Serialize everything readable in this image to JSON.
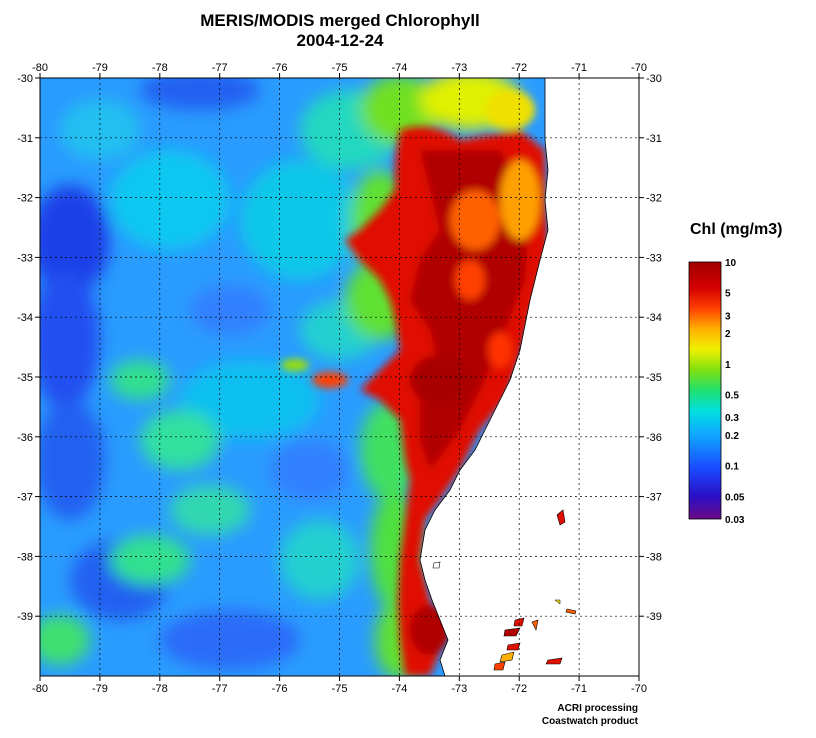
{
  "title": "MERIS/MODIS merged Chlorophyll",
  "date": "2004-12-24",
  "map": {
    "lon_range": [
      -80,
      -70
    ],
    "lat_range": [
      -40,
      -30
    ],
    "lon_ticks": [
      "-80",
      "-79",
      "-78",
      "-77",
      "-76",
      "-75",
      "-74",
      "-73",
      "-72",
      "-71",
      "-70"
    ],
    "lat_ticks": [
      "-30",
      "-31",
      "-32",
      "-33",
      "-34",
      "-35",
      "-36",
      "-37",
      "-38",
      "-39"
    ],
    "land_color": "#ffffff",
    "grid": "dotted"
  },
  "legend": {
    "title": "Chl (mg/m3)",
    "scale": "log",
    "range": [
      0.03,
      10
    ],
    "labels": [
      "10",
      "5",
      "3",
      "2",
      "1",
      "0.5",
      "0.3",
      "0.2",
      "0.1",
      "0.05",
      "0.03"
    ],
    "colors": [
      "#6a0a86",
      "#2a10c8",
      "#1a4cff",
      "#10a8ff",
      "#00e0e0",
      "#20e070",
      "#80e010",
      "#f0f000",
      "#ffb000",
      "#ff4000",
      "#d40000",
      "#a00000"
    ]
  },
  "credits": [
    "ACRI processing",
    "Coastwatch product"
  ]
}
